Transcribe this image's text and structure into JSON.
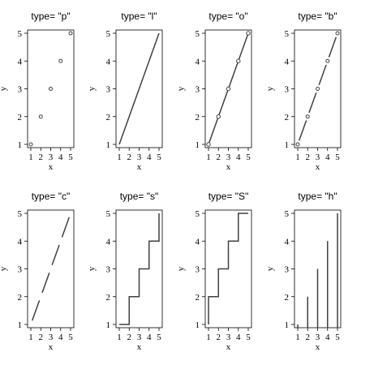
{
  "chart_data": [
    {
      "type": "scatter",
      "plot_type": "p",
      "title": "type= \"p\"",
      "xlabel": "x",
      "ylabel": "y",
      "x": [
        1,
        2,
        3,
        4,
        5
      ],
      "y": [
        1,
        2,
        3,
        4,
        5
      ],
      "xlim": [
        1,
        5
      ],
      "ylim": [
        1,
        5
      ],
      "xticks": [
        1,
        2,
        3,
        4,
        5
      ],
      "yticks": [
        1,
        2,
        3,
        4,
        5
      ],
      "grid": false
    },
    {
      "type": "line",
      "plot_type": "l",
      "title": "type= \"l\"",
      "xlabel": "x",
      "ylabel": "y",
      "x": [
        1,
        2,
        3,
        4,
        5
      ],
      "y": [
        1,
        2,
        3,
        4,
        5
      ],
      "xlim": [
        1,
        5
      ],
      "ylim": [
        1,
        5
      ],
      "xticks": [
        1,
        2,
        3,
        4,
        5
      ],
      "yticks": [
        1,
        2,
        3,
        4,
        5
      ],
      "grid": false
    },
    {
      "type": "line",
      "plot_type": "o",
      "title": "type= \"o\"",
      "xlabel": "x",
      "ylabel": "y",
      "x": [
        1,
        2,
        3,
        4,
        5
      ],
      "y": [
        1,
        2,
        3,
        4,
        5
      ],
      "xlim": [
        1,
        5
      ],
      "ylim": [
        1,
        5
      ],
      "xticks": [
        1,
        2,
        3,
        4,
        5
      ],
      "yticks": [
        1,
        2,
        3,
        4,
        5
      ],
      "grid": false
    },
    {
      "type": "line",
      "plot_type": "b",
      "title": "type= \"b\"",
      "xlabel": "x",
      "ylabel": "y",
      "x": [
        1,
        2,
        3,
        4,
        5
      ],
      "y": [
        1,
        2,
        3,
        4,
        5
      ],
      "xlim": [
        1,
        5
      ],
      "ylim": [
        1,
        5
      ],
      "xticks": [
        1,
        2,
        3,
        4,
        5
      ],
      "yticks": [
        1,
        2,
        3,
        4,
        5
      ],
      "grid": false
    },
    {
      "type": "line",
      "plot_type": "c",
      "title": "type= \"c\"",
      "xlabel": "x",
      "ylabel": "y",
      "x": [
        1,
        2,
        3,
        4,
        5
      ],
      "y": [
        1,
        2,
        3,
        4,
        5
      ],
      "xlim": [
        1,
        5
      ],
      "ylim": [
        1,
        5
      ],
      "xticks": [
        1,
        2,
        3,
        4,
        5
      ],
      "yticks": [
        1,
        2,
        3,
        4,
        5
      ],
      "grid": false
    },
    {
      "type": "line",
      "plot_type": "s",
      "title": "type= \"s\"",
      "xlabel": "x",
      "ylabel": "y",
      "x": [
        1,
        2,
        3,
        4,
        5
      ],
      "y": [
        1,
        2,
        3,
        4,
        5
      ],
      "xlim": [
        1,
        5
      ],
      "ylim": [
        1,
        5
      ],
      "xticks": [
        1,
        2,
        3,
        4,
        5
      ],
      "yticks": [
        1,
        2,
        3,
        4,
        5
      ],
      "grid": false
    },
    {
      "type": "line",
      "plot_type": "S",
      "title": "type= \"S\"",
      "xlabel": "x",
      "ylabel": "y",
      "x": [
        1,
        2,
        3,
        4,
        5
      ],
      "y": [
        1,
        2,
        3,
        4,
        5
      ],
      "xlim": [
        1,
        5
      ],
      "ylim": [
        1,
        5
      ],
      "xticks": [
        1,
        2,
        3,
        4,
        5
      ],
      "yticks": [
        1,
        2,
        3,
        4,
        5
      ],
      "grid": false
    },
    {
      "type": "bar",
      "plot_type": "h",
      "title": "type= \"h\"",
      "xlabel": "x",
      "ylabel": "y",
      "x": [
        1,
        2,
        3,
        4,
        5
      ],
      "y": [
        1,
        2,
        3,
        4,
        5
      ],
      "xlim": [
        1,
        5
      ],
      "ylim": [
        1,
        5
      ],
      "xticks": [
        1,
        2,
        3,
        4,
        5
      ],
      "yticks": [
        1,
        2,
        3,
        4,
        5
      ],
      "grid": false
    }
  ],
  "colors": {
    "mark": "#404040",
    "axis": "#000000",
    "background": "#ffffff"
  }
}
